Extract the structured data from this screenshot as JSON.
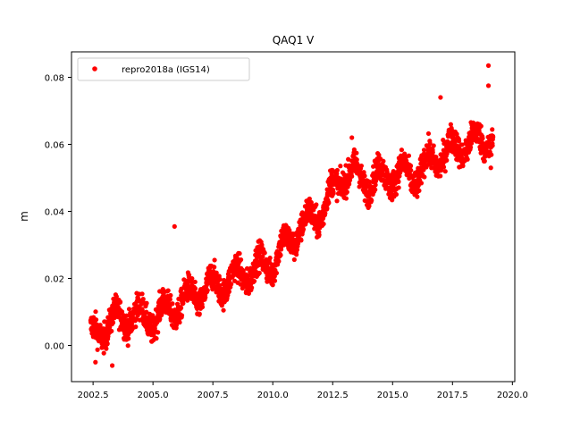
{
  "chart_data": {
    "type": "scatter",
    "title": "QAQ1 V",
    "xlabel": "",
    "ylabel": "m",
    "xlim": [
      2001.6,
      2020.1
    ],
    "ylim": [
      -0.0108,
      0.0876
    ],
    "xticks": [
      2002.5,
      2005.0,
      2007.5,
      2010.0,
      2012.5,
      2015.0,
      2017.5,
      2020.0
    ],
    "xtick_labels": [
      "2002.5",
      "2005.0",
      "2007.5",
      "2010.0",
      "2012.5",
      "2015.0",
      "2017.5",
      "2020.0"
    ],
    "yticks": [
      0.0,
      0.02,
      0.04,
      0.06,
      0.08
    ],
    "ytick_labels": [
      "0.00",
      "0.02",
      "0.04",
      "0.06",
      "0.08"
    ],
    "grid": false,
    "legend_position": "top-left",
    "series": [
      {
        "name": "repro2018a (IGS14)",
        "color": "#ff0000",
        "marker": "dot",
        "trend": {
          "x": [
            2002.4,
            2003.0,
            2004.0,
            2005.0,
            2006.0,
            2007.0,
            2008.0,
            2009.0,
            2010.0,
            2011.0,
            2012.0,
            2013.0,
            2014.0,
            2015.0,
            2016.0,
            2017.0,
            2018.0,
            2019.2
          ],
          "y": [
            0.002,
            0.006,
            0.009,
            0.008,
            0.012,
            0.016,
            0.019,
            0.022,
            0.025,
            0.034,
            0.04,
            0.052,
            0.049,
            0.051,
            0.051,
            0.057,
            0.06,
            0.062
          ]
        },
        "scatter_spread": 0.006,
        "points_per_year": 140,
        "outliers": [
          {
            "x": 2019.0,
            "y": 0.0835
          },
          {
            "x": 2019.0,
            "y": 0.0775
          },
          {
            "x": 2017.0,
            "y": 0.074
          },
          {
            "x": 2002.6,
            "y": -0.005
          },
          {
            "x": 2003.3,
            "y": -0.006
          },
          {
            "x": 2005.9,
            "y": 0.0355
          },
          {
            "x": 2013.3,
            "y": 0.062
          },
          {
            "x": 2019.1,
            "y": 0.053
          }
        ]
      }
    ]
  }
}
